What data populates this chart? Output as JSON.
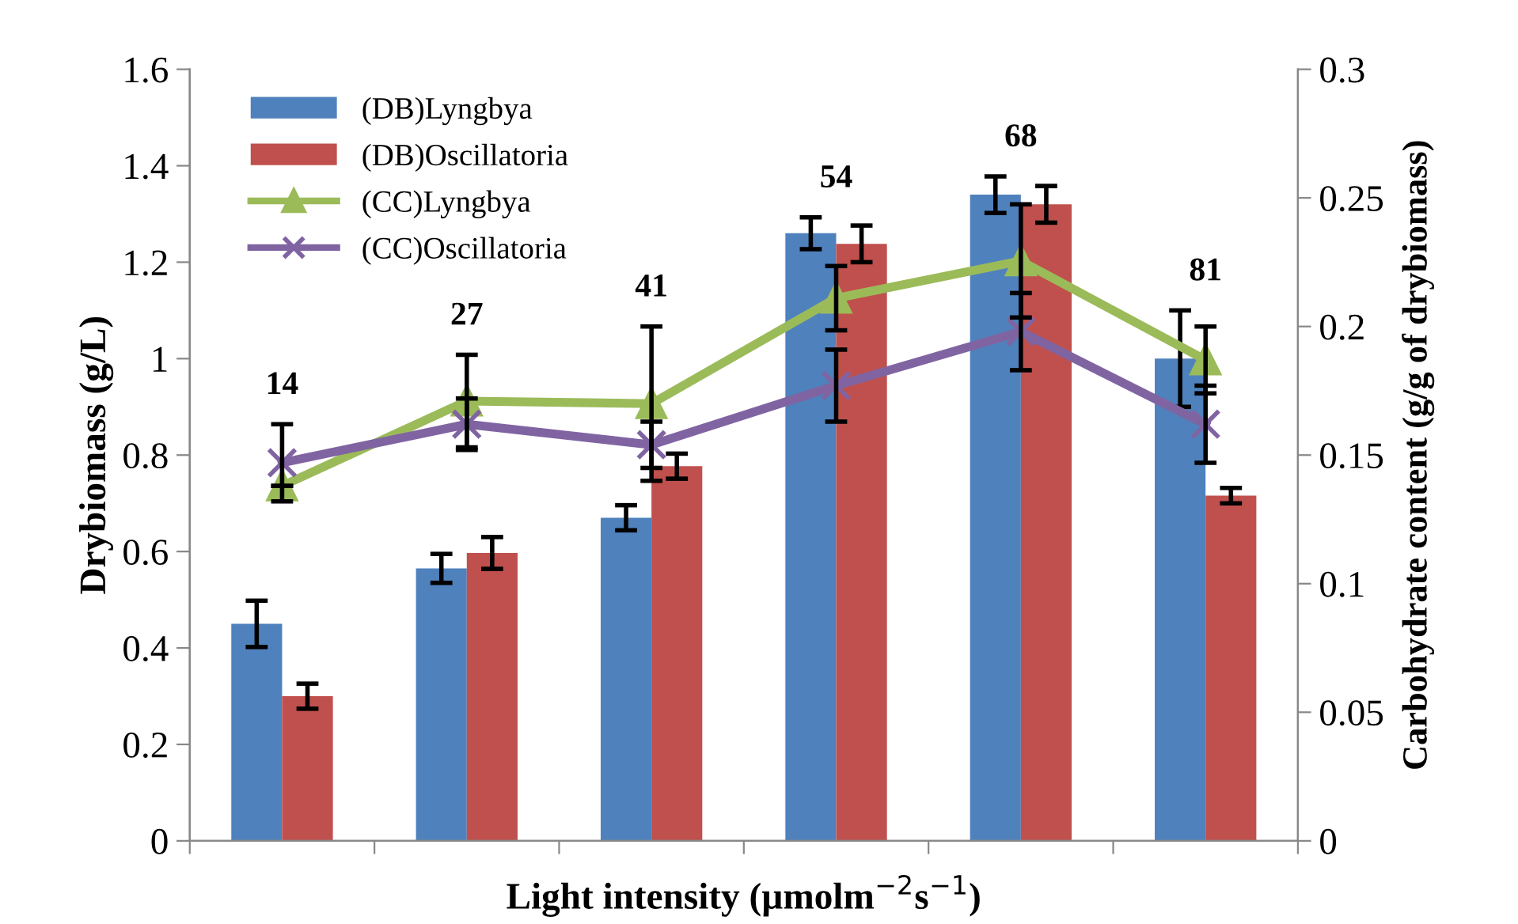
{
  "chart_data": {
    "type": "bar",
    "categories": [
      "14",
      "27",
      "41",
      "54",
      "68",
      "81"
    ],
    "xlabel": "Light intensity (µmolm$^{−2}$s$^{−1}$)",
    "ylabel": "Drybiomass (g/L)",
    "y2label": "Carbohydrate content (g/g of drybiomass)",
    "ylim": [
      0,
      1.6
    ],
    "yticks": [
      0,
      0.2,
      0.4,
      0.6,
      0.8,
      1,
      1.2,
      1.4,
      1.6
    ],
    "y2lim": [
      0,
      0.3
    ],
    "y2ticks": [
      0,
      0.05,
      0.1,
      0.15,
      0.2,
      0.25,
      0.3
    ],
    "legend": "top left",
    "grid": false,
    "series": [
      {
        "name": "(DB)Lyngbya",
        "color": "#4f81bd",
        "values": [
          0.45,
          0.565,
          0.67,
          1.26,
          1.34,
          1.0
        ],
        "errors": [
          0.048,
          0.03,
          0.026,
          0.033,
          0.038,
          0.1
        ]
      },
      {
        "name": "(DB)Oscillatoria",
        "color": "#c0504d",
        "values": [
          0.3,
          0.597,
          0.777,
          1.238,
          1.32,
          0.716
        ],
        "errors": [
          0.026,
          0.033,
          0.026,
          0.038,
          0.038,
          0.016
        ]
      },
      {
        "name": "(CC)Lyngbya",
        "type": "line",
        "axis": "y2",
        "marker": "triangle",
        "color": "#9bbb59",
        "values": [
          0.138,
          0.171,
          0.17,
          0.211,
          0.2255,
          0.187
        ],
        "errors": [
          null,
          0.018,
          0.03,
          0.0125,
          0.022,
          0.013
        ]
      },
      {
        "name": "(CC)Oscillatoria",
        "type": "line",
        "axis": "y2",
        "marker": "cross",
        "color": "#8064a2",
        "values": [
          0.147,
          0.162,
          0.154,
          0.177,
          0.198,
          0.162
        ],
        "errors": [
          0.015,
          0.01,
          0.009,
          0.014,
          0.015,
          0.015
        ]
      }
    ]
  }
}
